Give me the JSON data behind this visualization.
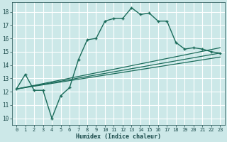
{
  "title": "",
  "xlabel": "Humidex (Indice chaleur)",
  "bg_color": "#cce8e8",
  "grid_color": "#b0d8d8",
  "line_color": "#1a6b5a",
  "xlim": [
    -0.5,
    23.5
  ],
  "ylim": [
    9.5,
    18.7
  ],
  "yticks": [
    10,
    11,
    12,
    13,
    14,
    15,
    16,
    17,
    18
  ],
  "xticks": [
    0,
    1,
    2,
    3,
    4,
    5,
    6,
    7,
    8,
    9,
    10,
    11,
    12,
    13,
    14,
    15,
    16,
    17,
    18,
    19,
    20,
    21,
    22,
    23
  ],
  "curve1_x": [
    0,
    1,
    2,
    3,
    4,
    5,
    6,
    7,
    8,
    9,
    10,
    11,
    12,
    13,
    14,
    15,
    16,
    17,
    18,
    19,
    20,
    21,
    22,
    23
  ],
  "curve1_y": [
    12.2,
    13.3,
    12.1,
    12.1,
    10.0,
    11.7,
    12.3,
    14.4,
    15.9,
    16.0,
    17.3,
    17.5,
    17.5,
    18.3,
    17.8,
    17.9,
    17.3,
    17.3,
    15.7,
    15.2,
    15.3,
    15.2,
    15.0,
    14.9
  ],
  "line1_x": [
    0,
    23
  ],
  "line1_y": [
    12.2,
    15.3
  ],
  "line2_x": [
    0,
    23
  ],
  "line2_y": [
    12.2,
    14.9
  ],
  "line3_x": [
    0,
    23
  ],
  "line3_y": [
    12.2,
    14.6
  ]
}
